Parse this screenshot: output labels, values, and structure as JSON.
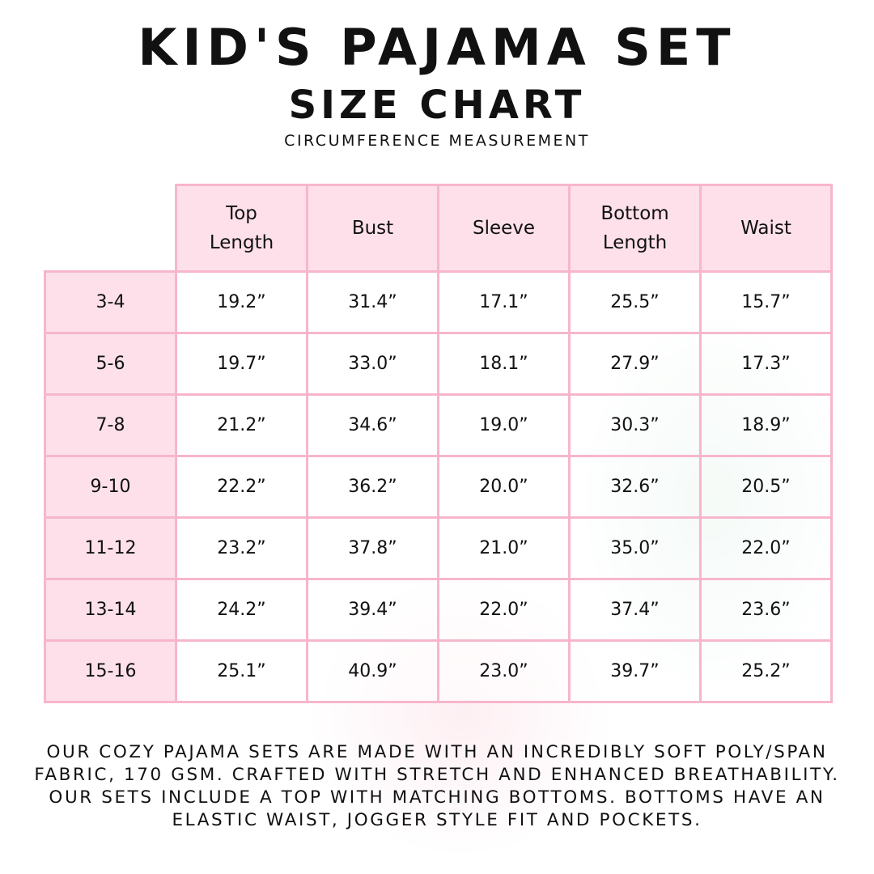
{
  "title": "Kid's Pajama Set",
  "subtitle": "Size Chart",
  "note": "Circumference Measurement",
  "colors": {
    "header_fill": "#fde0ea",
    "border": "#f7b6cc",
    "text": "#111111"
  },
  "table": {
    "columns": [
      "Top\nLength",
      "Bust",
      "Sleeve",
      "Bottom\nLength",
      "Waist"
    ],
    "rows": [
      {
        "size": "3-4",
        "values": [
          "19.2”",
          "31.4”",
          "17.1”",
          "25.5”",
          "15.7”"
        ]
      },
      {
        "size": "5-6",
        "values": [
          "19.7”",
          "33.0”",
          "18.1”",
          "27.9”",
          "17.3”"
        ]
      },
      {
        "size": "7-8",
        "values": [
          "21.2”",
          "34.6”",
          "19.0”",
          "30.3”",
          "18.9”"
        ]
      },
      {
        "size": "9-10",
        "values": [
          "22.2”",
          "36.2”",
          "20.0”",
          "32.6”",
          "20.5”"
        ]
      },
      {
        "size": "11-12",
        "values": [
          "23.2”",
          "37.8”",
          "21.0”",
          "35.0”",
          "22.0”"
        ]
      },
      {
        "size": "13-14",
        "values": [
          "24.2”",
          "39.4”",
          "22.0”",
          "37.4”",
          "23.6”"
        ]
      },
      {
        "size": "15-16",
        "values": [
          "25.1”",
          "40.9”",
          "23.0”",
          "39.7”",
          "25.2”"
        ]
      }
    ]
  },
  "description": "Our cozy pajama sets are made with an incredibly soft poly/span fabric, 170 GSM. Crafted with stretch and enhanced breathability. Our sets include a top with matching bottoms. Bottoms have an elastic waist, jogger style fit and pockets."
}
